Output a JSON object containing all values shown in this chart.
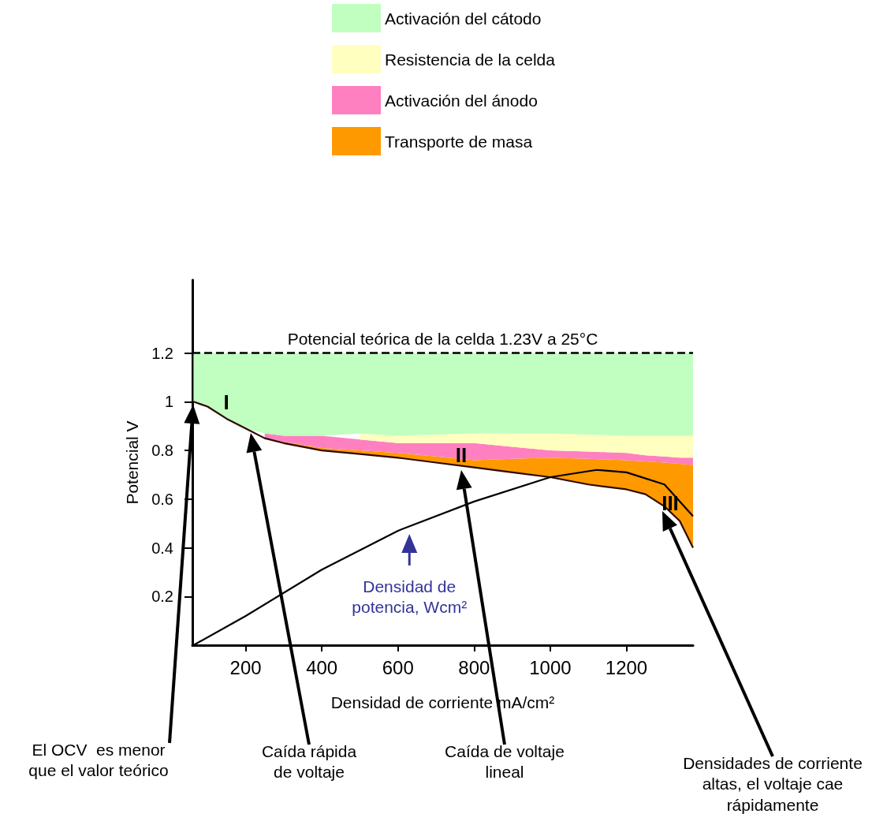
{
  "chart_data": {
    "type": "line",
    "xlabel": "Densidad de corriente mA/cm²",
    "ylabel": "Potencial V",
    "x": [
      63,
      100,
      150,
      200,
      250,
      300,
      400,
      500,
      600,
      700,
      800,
      900,
      1000,
      1100,
      1200,
      1250,
      1300,
      1340,
      1375
    ],
    "series": [
      {
        "color": "#2b0a00",
        "values": [
          1.0,
          0.98,
          0.93,
          0.89,
          0.85,
          0.83,
          0.8,
          0.785,
          0.77,
          0.75,
          0.73,
          0.71,
          0.69,
          0.66,
          0.64,
          0.62,
          0.57,
          0.51,
          0.4
        ]
      },
      {
        "name": "Transporte de masa",
        "type": "area",
        "color": "#ff9900",
        "values": [
          null,
          null,
          null,
          null,
          0.85,
          0.835,
          0.81,
          0.8,
          0.79,
          0.775,
          0.76,
          0.765,
          0.77,
          0.765,
          0.76,
          0.755,
          0.75,
          0.745,
          0.74
        ]
      },
      {
        "name": "Activación del ánodo",
        "type": "area",
        "color": "#ff80c0",
        "values": [
          null,
          null,
          null,
          null,
          0.87,
          0.86,
          0.86,
          0.845,
          0.83,
          0.83,
          0.83,
          0.815,
          0.8,
          0.795,
          0.79,
          0.78,
          0.775,
          0.77,
          0.77
        ]
      },
      {
        "name": "Resistencia de la celda",
        "type": "area",
        "color": "#ffffc0",
        "values": [
          null,
          null,
          null,
          null,
          null,
          null,
          null,
          0.87,
          0.86,
          0.865,
          0.87,
          0.87,
          0.87,
          0.865,
          0.86,
          0.86,
          0.86,
          0.86,
          0.86
        ]
      },
      {
        "name": "Activación del cátodo",
        "type": "area",
        "color": "#c0ffc0",
        "values": [
          1.2,
          1.2,
          1.2,
          1.2,
          1.2,
          1.2,
          1.2,
          1.2,
          1.2,
          1.2,
          1.2,
          1.2,
          1.2,
          1.2,
          1.2,
          1.2,
          1.2,
          1.2,
          1.2
        ]
      },
      {
        "color": "#000000",
        "x": [
          63,
          200,
          400,
          600,
          800,
          1000,
          1122,
          1200,
          1300,
          1375
        ],
        "values": [
          0,
          0.12,
          0.31,
          0.47,
          0.59,
          0.69,
          0.72,
          0.71,
          0.66,
          0.53
        ]
      }
    ],
    "xlim": [
      60,
      1375
    ],
    "xticks": [
      200,
      400,
      600,
      800,
      1000,
      1200
    ],
    "ylim": [
      0,
      1.5
    ],
    "yticks": [
      0.2,
      0.4,
      0.6,
      0.8,
      1,
      1.2
    ],
    "ref_lines": [
      {
        "axis": "y",
        "value": 1.2,
        "label": "Potencial teórica de la celda 1.23V a 25°C",
        "color": "#000000",
        "line_style": "dashed"
      }
    ],
    "legend": "top",
    "annotations": [
      "I",
      "II",
      "III",
      {
        "text": "Densidad de potencia, Wcm²",
        "x": 630,
        "y": 0.47
      },
      "El OCV  es menor que el valor teórico",
      "Caída rápida de voltaje",
      "Caída de voltaje lineal",
      "Densidades de corriente altas, el voltaje cae rápidamente"
    ]
  }
}
